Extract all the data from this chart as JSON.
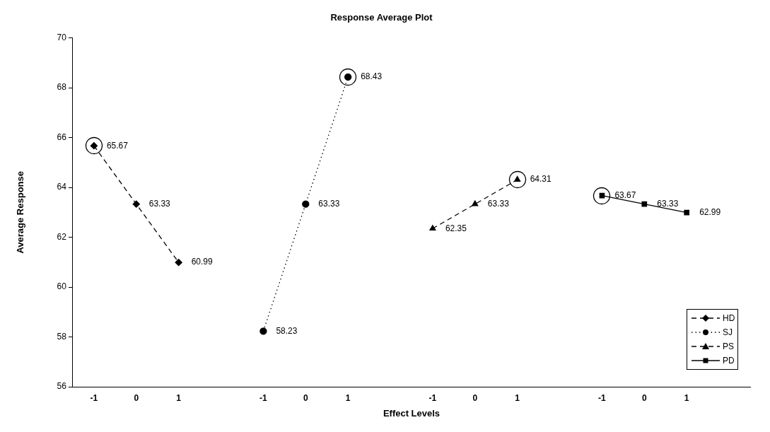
{
  "chart_data": {
    "type": "line",
    "title": "Response Average Plot",
    "xlabel": "Effect Levels",
    "ylabel": "Average Response",
    "categories": [
      "-1",
      "0",
      "1",
      null,
      "-1",
      "0",
      "1",
      null,
      "-1",
      "0",
      "1",
      null,
      "-1",
      "0",
      "1",
      null
    ],
    "series": [
      {
        "name": "HD",
        "color": "#000000",
        "marker": "diamond",
        "line_style": "dashed",
        "values": [
          65.67,
          63.33,
          60.99,
          null,
          null,
          null,
          null,
          null,
          null,
          null,
          null,
          null,
          null,
          null,
          null,
          null
        ]
      },
      {
        "name": "SJ",
        "color": "#000000",
        "marker": "circle",
        "line_style": "dotted",
        "values": [
          null,
          null,
          null,
          null,
          58.23,
          63.33,
          68.43,
          null,
          null,
          null,
          null,
          null,
          null,
          null,
          null,
          null
        ]
      },
      {
        "name": "PS",
        "color": "#000000",
        "marker": "triangle",
        "line_style": "dashed",
        "values": [
          null,
          null,
          null,
          null,
          null,
          null,
          null,
          null,
          62.35,
          63.33,
          64.31,
          null,
          null,
          null,
          null,
          null
        ]
      },
      {
        "name": "PD",
        "color": "#000000",
        "marker": "square",
        "line_style": "solid",
        "values": [
          null,
          null,
          null,
          null,
          null,
          null,
          null,
          null,
          null,
          null,
          null,
          null,
          63.67,
          63.33,
          62.99,
          null
        ]
      }
    ],
    "ylim": [
      56,
      70
    ],
    "yticks": [
      56,
      58,
      60,
      62,
      64,
      66,
      68,
      70
    ],
    "grid": false,
    "legend": "bottom right",
    "data_labels": true
  }
}
